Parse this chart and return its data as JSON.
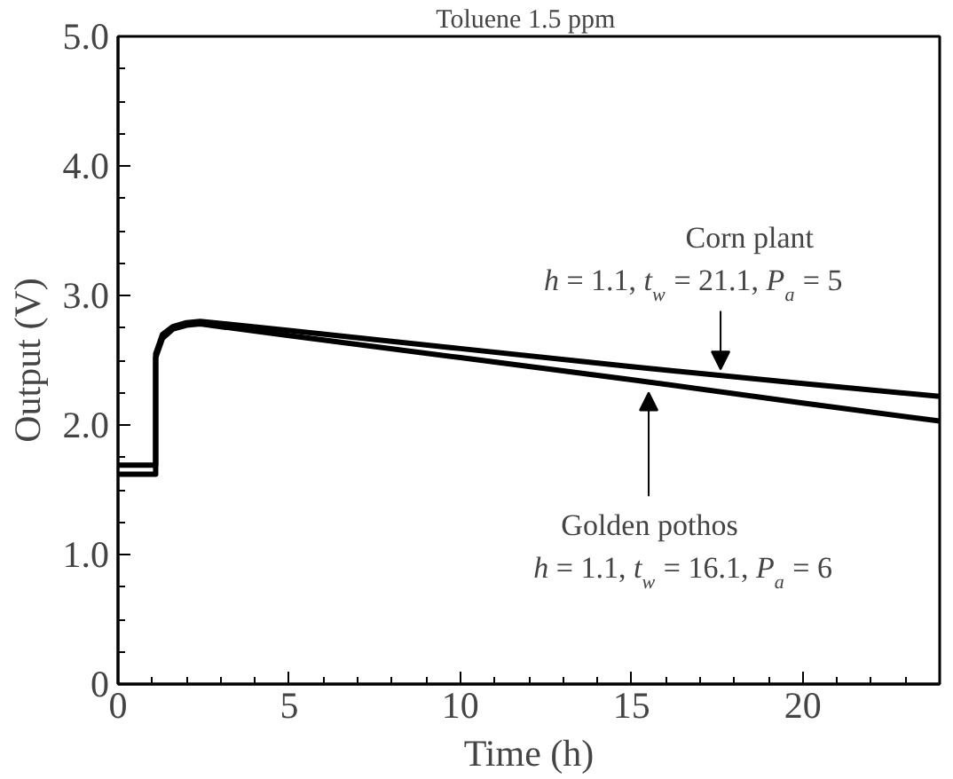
{
  "chart_data": {
    "type": "line",
    "title": "Toluene  1.5 ppm",
    "xlabel": "Time (h)",
    "ylabel": "Output (V)",
    "xlim": [
      0,
      24
    ],
    "ylim": [
      0,
      5
    ],
    "xticks": [
      0,
      5,
      10,
      15,
      20
    ],
    "yticks": [
      0,
      {
        "value": 1,
        "label": "1.0"
      },
      {
        "value": 2,
        "label": "2.0"
      },
      {
        "value": 3,
        "label": "3.0"
      },
      {
        "value": 4,
        "label": "4.0"
      },
      {
        "value": 5,
        "label": "5.0"
      }
    ],
    "grid": false,
    "series": [
      {
        "color": "#000000",
        "x": [
          0,
          1.1,
          1.1,
          1.3,
          1.6,
          2.0,
          2.4,
          5,
          10,
          15,
          20,
          24
        ],
        "values": [
          1.69,
          1.69,
          2.55,
          2.7,
          2.76,
          2.79,
          2.8,
          2.73,
          2.59,
          2.45,
          2.32,
          2.22
        ]
      },
      {
        "color": "#000000",
        "x": [
          0,
          1.1,
          1.1,
          1.3,
          1.6,
          2.0,
          2.4,
          5,
          10,
          15,
          20,
          24
        ],
        "values": [
          1.62,
          1.62,
          2.52,
          2.67,
          2.74,
          2.77,
          2.78,
          2.69,
          2.52,
          2.35,
          2.17,
          2.03
        ]
      }
    ],
    "annotations": [
      "Corn plant",
      {
        "text": "h = 1.1, t$_{w}$ = 21.1, P$_{a}$ = 5",
        "x": 17.6,
        "y": 2.38
      },
      {
        "text": "Golden pothos",
        "x": 15.5,
        "y": 2.3
      },
      "h = 1.1, t$_{w}$ = 16.1, P$_{a}$ = 6"
    ]
  }
}
